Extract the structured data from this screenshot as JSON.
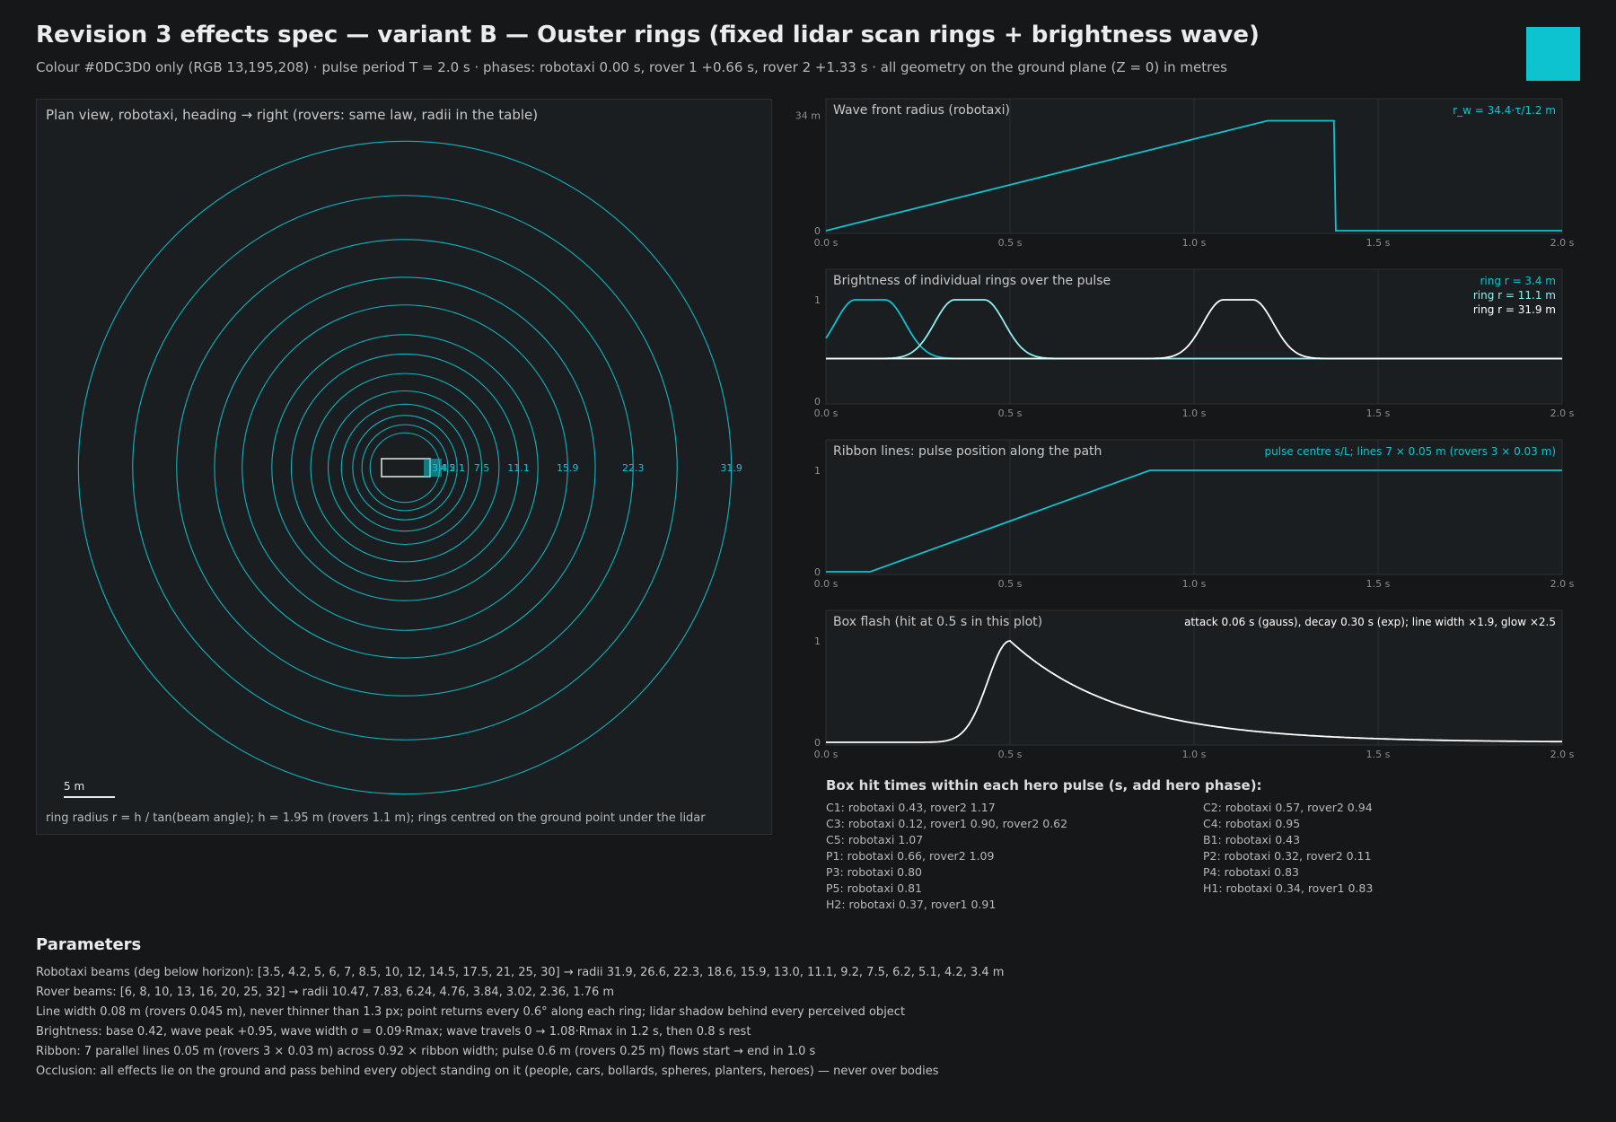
{
  "header": {
    "title": "Revision 3 effects spec — variant B — Ouster rings (fixed lidar scan rings + brightness wave)",
    "subtitle": "Colour #0DC3D0 only (RGB 13,195,208) · pulse period T = 2.0 s · phases: robotaxi 0.00 s, rover 1 +0.66 s, rover 2 +1.33 s · all geometry on the ground plane (Z = 0) in metres",
    "swatch_color": "#0DC3D0"
  },
  "plan": {
    "title": "Plan view, robotaxi, heading → right (rovers: same law, radii in the table)",
    "footer": "ring radius r = h / tan(beam angle); h = 1.95 m (rovers 1.1 m); rings centred on the ground point under the lidar",
    "scale_label": "5 m"
  },
  "hits": {
    "title": "Box hit times within each hero pulse (s, add hero phase):",
    "items": [
      "C1: robotaxi 0.43, rover2 1.17",
      "C2: robotaxi 0.57, rover2 0.94",
      "C3: robotaxi 0.12, rover1 0.90, rover2 0.62",
      "C4: robotaxi 0.95",
      "C5: robotaxi 1.07",
      "B1: robotaxi 0.43",
      "P1: robotaxi 0.66, rover2 1.09",
      "P2: robotaxi 0.32, rover2 0.11",
      "P3: robotaxi 0.80",
      "P4: robotaxi 0.83",
      "P5: robotaxi 0.81",
      "H1: robotaxi 0.34, rover1 0.83",
      "H2: robotaxi 0.37, rover1 0.91"
    ]
  },
  "params": {
    "title": "Parameters",
    "lines": [
      "Robotaxi beams (deg below horizon): [3.5, 4.2, 5, 6, 7, 8.5, 10, 12, 14.5, 17.5, 21, 25, 30] → radii 31.9, 26.6, 22.3, 18.6, 15.9, 13.0, 11.1, 9.2, 7.5, 6.2, 5.1, 4.2, 3.4 m",
      "Rover beams: [6, 8, 10, 13, 16, 20, 25, 32] → radii 10.47, 7.83, 6.24, 4.76, 3.84, 3.02, 2.36, 1.76 m",
      "Line width 0.08 m (rovers 0.045 m), never thinner than 1.3 px; point returns every 0.6° along each ring; lidar shadow behind every perceived object",
      "Brightness: base 0.42, wave peak +0.95, wave width σ = 0.09·Rmax; wave travels 0 → 1.08·Rmax in 1.2 s, then 0.8 s rest",
      "Ribbon: 7 parallel lines 0.05 m (rovers 3 × 0.03 m) across 0.92 × ribbon width; pulse 0.6 m (rovers 0.25 m) flows start → end in 1.0 s",
      "Occlusion: all effects lie on the ground and pass behind every object standing on it (people, cars, bollards, spheres, planters, heroes) — never over bodies"
    ]
  },
  "chart_data": [
    {
      "type": "scatter",
      "title": "Plan view, robotaxi, heading → right (rovers: same law, radii in the table)",
      "ring_radii_m": [
        31.9,
        26.6,
        22.3,
        18.6,
        15.9,
        13.0,
        11.1,
        9.2,
        7.5,
        6.2,
        5.1,
        4.2,
        3.4
      ],
      "ring_labels": [
        "31.9",
        "22.3",
        "15.9",
        "11.1",
        "7.5",
        "5.1",
        "4.2",
        "3.4"
      ],
      "ring_label_values": [
        31.9,
        22.3,
        15.9,
        11.1,
        7.5,
        5.1,
        4.2,
        3.4
      ],
      "scale_bar_m": 5,
      "color": "#0DC3D0"
    },
    {
      "type": "line",
      "title": "Wave front radius (robotaxi)",
      "annotation": "r_w = 34.4·τ/1.2 m",
      "x_ticks": [
        "0.0 s",
        "0.5 s",
        "1.0 s",
        "1.5 s",
        "2.0 s"
      ],
      "y_ticks": [
        "0",
        "34 m"
      ],
      "xlim": [
        0,
        2.0
      ],
      "ylim": [
        0,
        34.4
      ],
      "series": [
        {
          "x": [
            0,
            1.2,
            1.38,
            1.385,
            2.0
          ],
          "y": [
            0,
            34.4,
            34.4,
            0,
            0
          ],
          "color": "#0DC3D0"
        }
      ]
    },
    {
      "type": "line",
      "title": "Brightness of individual rings over the pulse",
      "x_ticks": [
        "0.0 s",
        "0.5 s",
        "1.0 s",
        "1.5 s",
        "2.0 s"
      ],
      "y_ticks": [
        "0",
        "1"
      ],
      "xlim": [
        0,
        2.0
      ],
      "ylim": [
        0,
        1.15
      ],
      "series": [
        {
          "name": "ring r = 3.4 m",
          "center": 0.12,
          "color": "#0DC3D0"
        },
        {
          "name": "ring r = 11.1 m",
          "center": 0.39,
          "color": "#8ff0f0"
        },
        {
          "name": "ring r = 31.9 m",
          "center": 1.12,
          "color": "#ffffff"
        }
      ],
      "base": 0.42,
      "peak": 1.0
    },
    {
      "type": "line",
      "title": "Ribbon lines: pulse position along the path",
      "annotation": "pulse centre s/L; lines 7 × 0.05 m (rovers 3 × 0.03 m)",
      "x_ticks": [
        "0.0 s",
        "0.5 s",
        "1.0 s",
        "1.5 s",
        "2.0 s"
      ],
      "y_ticks": [
        "0",
        "1"
      ],
      "xlim": [
        0,
        2.0
      ],
      "ylim": [
        0,
        1.15
      ],
      "series": [
        {
          "x": [
            0,
            0.12,
            0.88,
            2.0
          ],
          "y": [
            0,
            0,
            1,
            1
          ],
          "color": "#0DC3D0"
        }
      ]
    },
    {
      "type": "line",
      "title": "Box flash (hit at 0.5 s in this plot)",
      "annotation": "attack 0.06 s (gauss), decay 0.30 s (exp); line width ×1.9, glow ×2.5",
      "x_ticks": [
        "0.0 s",
        "0.5 s",
        "1.0 s",
        "1.5 s",
        "2.0 s"
      ],
      "y_ticks": [
        "0",
        "1"
      ],
      "xlim": [
        0,
        2.0
      ],
      "ylim": [
        0,
        1.15
      ],
      "hit_time": 0.5,
      "attack": 0.06,
      "decay": 0.3,
      "series": [
        {
          "color": "#ffffff"
        }
      ]
    }
  ]
}
